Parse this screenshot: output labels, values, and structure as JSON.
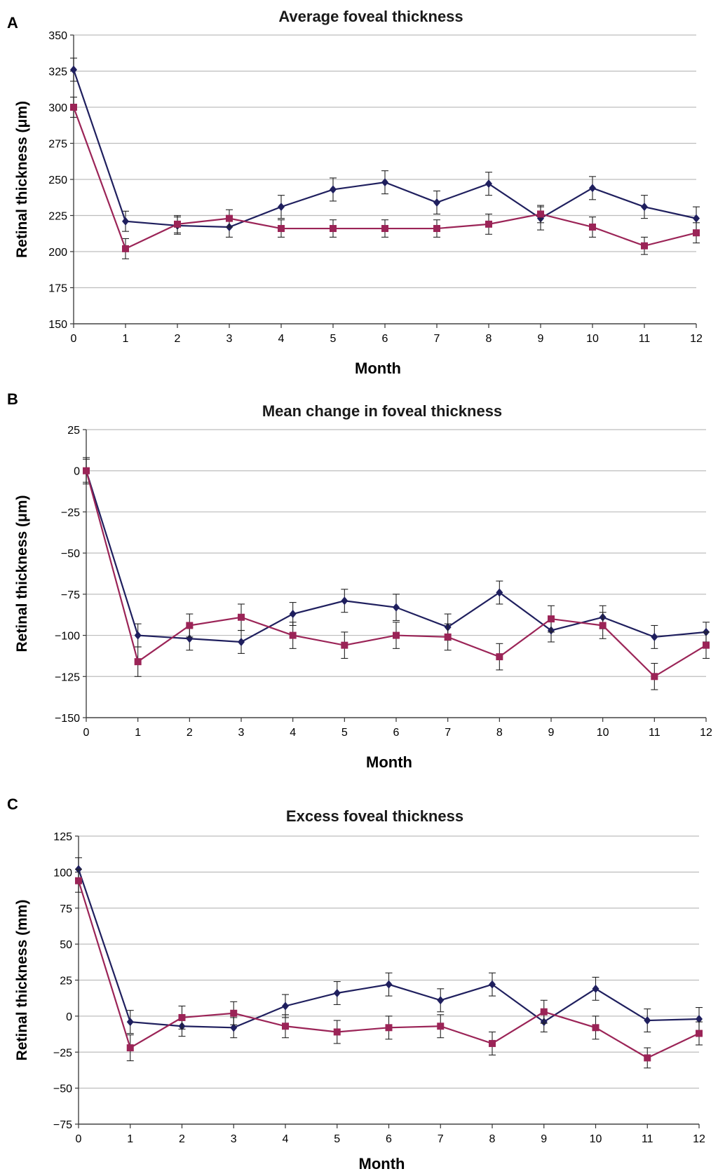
{
  "chart_data": [
    {
      "type": "line",
      "panel": "A",
      "title": "Average foveal thickness",
      "xlabel": "Month",
      "ylabel": "Retinal thickness (μm)",
      "x": [
        0,
        1,
        2,
        3,
        4,
        5,
        6,
        7,
        8,
        9,
        10,
        11,
        12
      ],
      "ylim": [
        150,
        350
      ],
      "yticks": [
        150,
        175,
        200,
        225,
        250,
        275,
        300,
        325,
        350
      ],
      "grid": true,
      "legend": "none",
      "series": [
        {
          "color": "#1f1f5e",
          "marker": "diamond",
          "values": [
            326,
            221,
            218,
            217,
            231,
            243,
            248,
            234,
            247,
            223,
            244,
            231,
            223
          ],
          "err": [
            8,
            7,
            6,
            7,
            8,
            8,
            8,
            8,
            8,
            8,
            8,
            8,
            8
          ]
        },
        {
          "color": "#9b2457",
          "marker": "square",
          "values": [
            300,
            202,
            219,
            223,
            216,
            216,
            216,
            216,
            219,
            226,
            217,
            204,
            213
          ],
          "err": [
            7,
            7,
            6,
            6,
            6,
            6,
            6,
            6,
            7,
            6,
            7,
            6,
            7
          ]
        }
      ]
    },
    {
      "type": "line",
      "panel": "B",
      "title": "Mean change in foveal thickness",
      "xlabel": "Month",
      "ylabel": "Retinal thickness (μm)",
      "x": [
        0,
        1,
        2,
        3,
        4,
        5,
        6,
        7,
        8,
        9,
        10,
        11,
        12
      ],
      "ylim": [
        -150,
        25
      ],
      "yticks": [
        -150,
        -125,
        -100,
        -75,
        -50,
        -25,
        0,
        25
      ],
      "grid": true,
      "legend": "none",
      "series": [
        {
          "color": "#1f1f5e",
          "marker": "diamond",
          "values": [
            0,
            -100,
            -102,
            -104,
            -87,
            -79,
            -83,
            -95,
            -74,
            -97,
            -89,
            -101,
            -98
          ],
          "err": [
            8,
            7,
            7,
            7,
            7,
            7,
            8,
            8,
            7,
            7,
            7,
            7,
            6
          ]
        },
        {
          "color": "#9b2457",
          "marker": "square",
          "values": [
            0,
            -116,
            -94,
            -89,
            -100,
            -106,
            -100,
            -101,
            -113,
            -90,
            -94,
            -125,
            -106
          ],
          "err": [
            7,
            9,
            7,
            8,
            8,
            8,
            8,
            8,
            8,
            8,
            8,
            8,
            8
          ]
        }
      ]
    },
    {
      "type": "line",
      "panel": "C",
      "title": "Excess foveal thickness",
      "xlabel": "Month",
      "ylabel": "Retinal thickness (mm)",
      "x": [
        0,
        1,
        2,
        3,
        4,
        5,
        6,
        7,
        8,
        9,
        10,
        11,
        12
      ],
      "ylim": [
        -75,
        125
      ],
      "yticks": [
        -75,
        -50,
        -25,
        0,
        25,
        50,
        75,
        100,
        125
      ],
      "grid": true,
      "legend": "none",
      "series": [
        {
          "color": "#1f1f5e",
          "marker": "diamond",
          "values": [
            102,
            -4,
            -7,
            -8,
            7,
            16,
            22,
            11,
            22,
            -4,
            19,
            -3,
            -2
          ],
          "err": [
            8,
            8,
            7,
            7,
            8,
            8,
            8,
            8,
            8,
            7,
            8,
            8,
            8
          ]
        },
        {
          "color": "#9b2457",
          "marker": "square",
          "values": [
            94,
            -22,
            -1,
            2,
            -7,
            -11,
            -8,
            -7,
            -19,
            3,
            -8,
            -29,
            -12
          ],
          "err": [
            8,
            9,
            8,
            8,
            8,
            8,
            8,
            8,
            8,
            8,
            8,
            7,
            8
          ]
        }
      ]
    }
  ]
}
